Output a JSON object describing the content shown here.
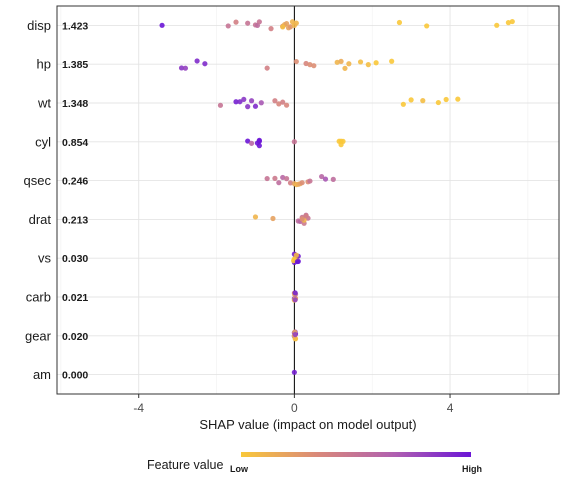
{
  "chart_data": {
    "type": "scatter",
    "title": "",
    "xlabel": "SHAP value (impact on model output)",
    "ylabel": "",
    "xlim": [
      -6.1,
      6.8
    ],
    "x_ticks": [
      -4,
      0,
      4
    ],
    "grid": true,
    "legend": {
      "title": "Feature value",
      "low_label": "Low",
      "high_label": "High",
      "placement": "bottom",
      "colors": [
        "#f9c83a",
        "#d9887a",
        "#b060b0",
        "#6b16d6"
      ]
    },
    "zero_line": true,
    "features": [
      {
        "name": "disp",
        "importance": "1.423",
        "points": [
          [
            -3.4,
            1
          ],
          [
            -1.7,
            0.5
          ],
          [
            -1.5,
            0.4
          ],
          [
            -1.2,
            0.5
          ],
          [
            -1.0,
            0.5
          ],
          [
            -0.95,
            0.55
          ],
          [
            -0.9,
            0.5
          ],
          [
            -0.6,
            0.4
          ],
          [
            -0.3,
            0.3
          ],
          [
            -0.25,
            0.15
          ],
          [
            -0.2,
            0.2
          ],
          [
            -0.15,
            0.2
          ],
          [
            -0.1,
            0.25
          ],
          [
            -0.05,
            0.1
          ],
          [
            0.0,
            0.1
          ],
          [
            0.05,
            0.1
          ],
          [
            -0.3,
            0.05
          ],
          [
            2.7,
            0
          ],
          [
            3.4,
            0
          ],
          [
            5.2,
            0
          ],
          [
            5.5,
            0
          ],
          [
            5.6,
            0
          ]
        ]
      },
      {
        "name": "hp",
        "importance": "1.385",
        "points": [
          [
            -2.9,
            0.85
          ],
          [
            -2.8,
            0.8
          ],
          [
            -2.5,
            0.9
          ],
          [
            -2.3,
            0.9
          ],
          [
            -0.7,
            0.4
          ],
          [
            0.05,
            0.3
          ],
          [
            0.3,
            0.35
          ],
          [
            0.4,
            0.3
          ],
          [
            0.5,
            0.3
          ],
          [
            1.1,
            0.1
          ],
          [
            1.2,
            0.15
          ],
          [
            1.3,
            0.1
          ],
          [
            1.4,
            0.1
          ],
          [
            1.7,
            0.05
          ],
          [
            1.9,
            0.05
          ],
          [
            2.1,
            0
          ],
          [
            2.5,
            0
          ]
        ]
      },
      {
        "name": "wt",
        "importance": "1.348",
        "points": [
          [
            -1.9,
            0.5
          ],
          [
            -1.5,
            0.95
          ],
          [
            -1.4,
            0.9
          ],
          [
            -1.3,
            0.85
          ],
          [
            -1.2,
            0.85
          ],
          [
            -1.1,
            0.8
          ],
          [
            -1.0,
            0.9
          ],
          [
            -0.85,
            0.7
          ],
          [
            -0.5,
            0.4
          ],
          [
            -0.4,
            0.35
          ],
          [
            -0.3,
            0.4
          ],
          [
            -0.2,
            0.35
          ],
          [
            2.8,
            0
          ],
          [
            3.0,
            0
          ],
          [
            3.3,
            0.05
          ],
          [
            3.7,
            0
          ],
          [
            3.9,
            0
          ],
          [
            4.2,
            0
          ]
        ]
      },
      {
        "name": "cyl",
        "importance": "0.854",
        "points": [
          [
            -1.2,
            1
          ],
          [
            -1.1,
            0.6
          ],
          [
            -0.95,
            1
          ],
          [
            -0.9,
            1
          ],
          [
            -0.9,
            1
          ],
          [
            -0.9,
            1
          ],
          [
            0.0,
            0.5
          ],
          [
            1.15,
            0
          ],
          [
            1.2,
            0
          ],
          [
            1.25,
            0
          ],
          [
            1.2,
            0
          ]
        ]
      },
      {
        "name": "qsec",
        "importance": "0.246",
        "points": [
          [
            -0.7,
            0.5
          ],
          [
            -0.5,
            0.45
          ],
          [
            -0.4,
            0.55
          ],
          [
            -0.3,
            0.6
          ],
          [
            -0.2,
            0.5
          ],
          [
            -0.1,
            0.4
          ],
          [
            0.0,
            0.2
          ],
          [
            0.05,
            0.1
          ],
          [
            0.1,
            0.15
          ],
          [
            0.15,
            0.2
          ],
          [
            0.2,
            0.3
          ],
          [
            0.35,
            0.3
          ],
          [
            0.4,
            0.5
          ],
          [
            0.7,
            0.6
          ],
          [
            0.8,
            0.7
          ],
          [
            1.0,
            0.55
          ]
        ]
      },
      {
        "name": "drat",
        "importance": "0.213",
        "points": [
          [
            -1.0,
            0.1
          ],
          [
            -0.55,
            0.2
          ],
          [
            0.1,
            0.55
          ],
          [
            0.15,
            0.6
          ],
          [
            0.2,
            0.5
          ],
          [
            0.25,
            0.45
          ],
          [
            0.3,
            0.55
          ],
          [
            0.35,
            0.5
          ],
          [
            0.25,
            0.1
          ],
          [
            0.2,
            0.3
          ],
          [
            0.3,
            0.4
          ]
        ]
      },
      {
        "name": "vs",
        "importance": "0.030",
        "points": [
          [
            0.0,
            1
          ],
          [
            0.05,
            1
          ],
          [
            0.1,
            1
          ],
          [
            0.0,
            0
          ],
          [
            0.05,
            0
          ],
          [
            0.03,
            0
          ],
          [
            -0.02,
            0
          ],
          [
            0.08,
            1
          ],
          [
            0.1,
            0.95
          ],
          [
            0.0,
            0.95
          ],
          [
            0.05,
            0.1
          ]
        ]
      },
      {
        "name": "carb",
        "importance": "0.021",
        "points": [
          [
            0.0,
            0.9
          ],
          [
            0.02,
            0.5
          ],
          [
            0.03,
            0.2
          ],
          [
            0.0,
            0.1
          ],
          [
            0.01,
            0.3
          ],
          [
            0.02,
            0.8
          ],
          [
            0.03,
            0.6
          ],
          [
            0.0,
            0.4
          ],
          [
            0.01,
            0.05
          ],
          [
            0.02,
            0.95
          ]
        ]
      },
      {
        "name": "gear",
        "importance": "0.020",
        "points": [
          [
            0.0,
            0.9
          ],
          [
            0.02,
            0.1
          ],
          [
            0.03,
            0.05
          ],
          [
            0.0,
            0.85
          ],
          [
            0.01,
            0.1
          ],
          [
            0.02,
            0.9
          ],
          [
            0.03,
            1
          ],
          [
            0.0,
            0.15
          ],
          [
            0.01,
            0.2
          ],
          [
            0.02,
            0.8
          ]
        ]
      },
      {
        "name": "am",
        "importance": "0.000",
        "points": [
          [
            0.0,
            0.95
          ]
        ]
      }
    ]
  }
}
